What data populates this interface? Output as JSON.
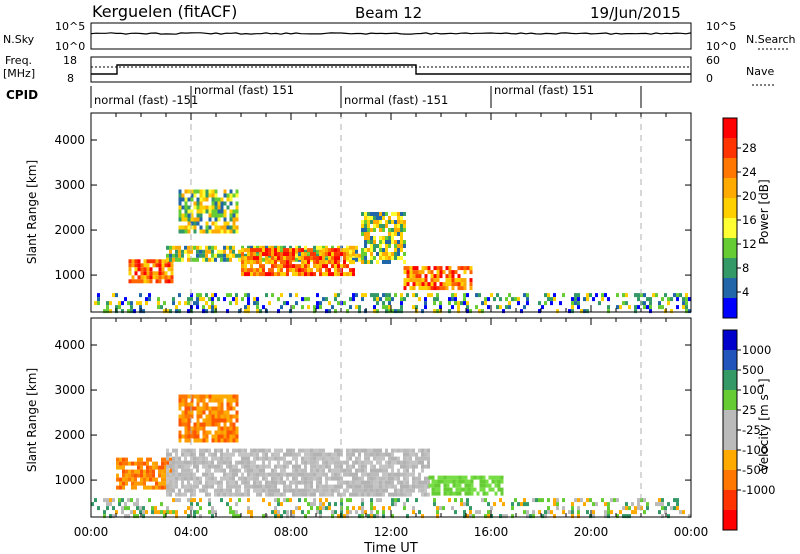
{
  "header": {
    "station": "Kerguelen (fitACF)",
    "beam": "Beam 12",
    "date": "19/Jun/2015"
  },
  "panels": {
    "nsky": {
      "left_label": "N.Sky",
      "left_ticks": [
        "10^5",
        "10^0"
      ],
      "right_ticks": [
        "10^5",
        "10^0"
      ],
      "right_label": "N.Search"
    },
    "freq": {
      "left_label_top": "Freq.",
      "left_label_unit": "[MHz]",
      "left_ticks": [
        "18",
        "8"
      ],
      "right_ticks": [
        "60",
        "0"
      ],
      "right_label": "Nave"
    },
    "cpid": {
      "label": "CPID",
      "segments": [
        {
          "label": "normal (fast) -151",
          "start_hr": 0,
          "end_hr": 4
        },
        {
          "label": "normal (fast) 151",
          "start_hr": 4,
          "end_hr": 10
        },
        {
          "label": "normal (fast) -151",
          "start_hr": 10,
          "end_hr": 16
        },
        {
          "label": "normal (fast) 151",
          "start_hr": 16,
          "end_hr": 22
        }
      ]
    }
  },
  "power_colorbar": {
    "label": "Power [dB]",
    "ticks": [
      "28",
      "24",
      "20",
      "16",
      "12",
      "8",
      "4"
    ],
    "colors": [
      "#ff0000",
      "#ff3300",
      "#ff7700",
      "#ffaa00",
      "#ffd000",
      "#ffff33",
      "#66cc33",
      "#339966",
      "#2266aa",
      "#0000ff"
    ]
  },
  "velocity_colorbar": {
    "label": "Velocity [m s⁻¹]",
    "ticks": [
      "1000",
      "500",
      "100",
      "25",
      "-25",
      "-100",
      "-500",
      "-1000"
    ],
    "colors": [
      "#0000cc",
      "#2255bb",
      "#339966",
      "#66cc33",
      "#bbbbbb",
      "#bbbbbb",
      "#ffaa00",
      "#ff7700",
      "#ff3300",
      "#ff0000"
    ]
  },
  "chart_data": [
    {
      "type": "heatmap",
      "name": "power",
      "ylabel": "Slant Range [km]",
      "xlabel": "Time UT",
      "xlim": [
        0,
        24
      ],
      "ylim": [
        180,
        4600
      ],
      "yticks": [
        1000,
        2000,
        3000,
        4000
      ],
      "xticks": [
        "00:00",
        "04:00",
        "08:00",
        "12:00",
        "16:00",
        "20:00",
        "00:00"
      ],
      "echo_regions": [
        {
          "t": [
            1.5,
            3.2
          ],
          "r": [
            850,
            1350
          ],
          "value": "strong (24-28 dB)"
        },
        {
          "t": [
            3.0,
            10.8
          ],
          "r": [
            1350,
            1650
          ],
          "value": "moderate (8-16 dB)"
        },
        {
          "t": [
            6.0,
            10.5
          ],
          "r": [
            1000,
            1600
          ],
          "value": "strong (20-28 dB)"
        },
        {
          "t": [
            3.5,
            5.8
          ],
          "r": [
            2000,
            2900
          ],
          "value": "moderate (16-24 dB)"
        },
        {
          "t": [
            10.8,
            12.5
          ],
          "r": [
            1300,
            2400
          ],
          "value": "moderate (12-24 dB)"
        },
        {
          "t": [
            12.5,
            15.2
          ],
          "r": [
            700,
            1200
          ],
          "value": "strong (20-28 dB)"
        },
        {
          "t": [
            0,
            24
          ],
          "r": [
            200,
            600
          ],
          "value": "ground clutter (4-12 dB)"
        }
      ]
    },
    {
      "type": "heatmap",
      "name": "velocity",
      "ylabel": "Slant Range [km]",
      "xlabel": "Time UT",
      "xlim": [
        0,
        24
      ],
      "ylim": [
        180,
        4600
      ],
      "yticks": [
        1000,
        2000,
        3000,
        4000
      ],
      "xticks": [
        "00:00",
        "04:00",
        "08:00",
        "12:00",
        "16:00",
        "20:00",
        "00:00"
      ],
      "echo_regions": [
        {
          "t": [
            1.0,
            3.2
          ],
          "r": [
            800,
            1500
          ],
          "value": "-100 to -500 m/s"
        },
        {
          "t": [
            3.5,
            5.8
          ],
          "r": [
            1900,
            2900
          ],
          "value": "-100 to -500 m/s"
        },
        {
          "t": [
            3.0,
            13.5
          ],
          "r": [
            700,
            1700
          ],
          "value": "-25 to 25 m/s"
        },
        {
          "t": [
            13.5,
            16.5
          ],
          "r": [
            700,
            1100
          ],
          "value": "100 m/s"
        },
        {
          "t": [
            0,
            24
          ],
          "r": [
            200,
            600
          ],
          "value": "mixed ground scatter"
        }
      ]
    }
  ]
}
